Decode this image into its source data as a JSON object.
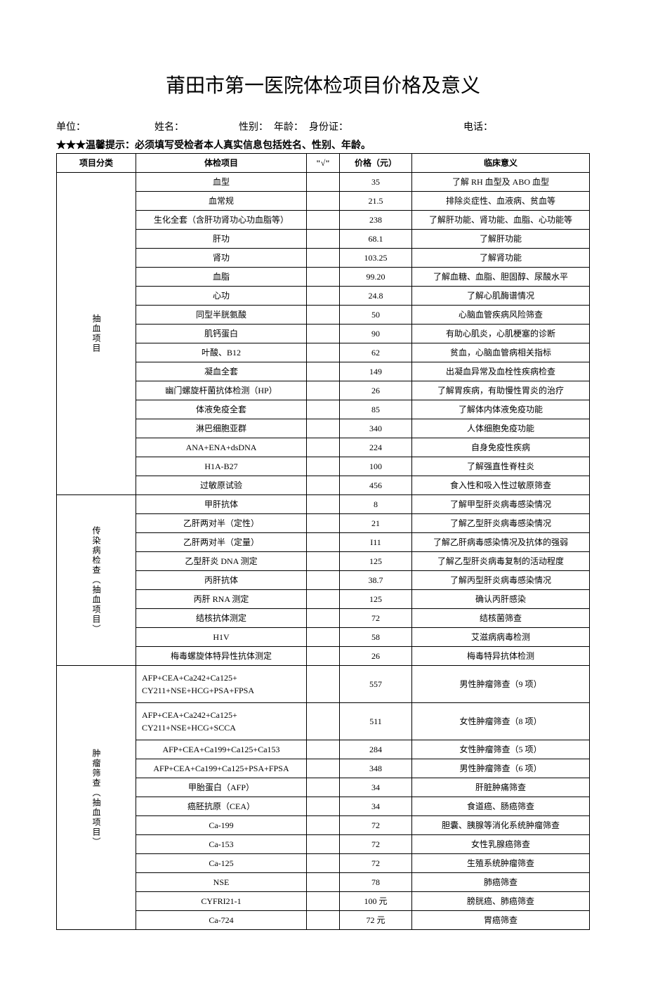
{
  "title": "莆田市第一医院体检项目价格及意义",
  "info": {
    "unit_label": "单位：",
    "name_label": "姓名：",
    "gender_label": "性别：",
    "age_label": "年龄：",
    "id_label": "身份证：",
    "phone_label": "电话："
  },
  "tip": "★★★温馨提示：必须填写受检者本人真实信息包括姓名、性别、年龄。",
  "header": {
    "category": "项目分类",
    "item": "体检项目",
    "check": "\"√\"",
    "price": "价格（元）",
    "meaning": "临床意义"
  },
  "sections": [
    {
      "category": "抽血项目",
      "rows": [
        {
          "item": "血型",
          "check": "",
          "price": "35",
          "desc": "了解 RH 血型及 ABO 血型"
        },
        {
          "item": "血常规",
          "check": "",
          "price": "21.5",
          "desc": "排除炎症性、血液病、贫血等"
        },
        {
          "item": "生化全套（含肝功肾功心功血脂等）",
          "check": "",
          "price": "238",
          "desc": "了解肝功能、肾功能、血脂、心功能等"
        },
        {
          "item": "肝功",
          "check": "",
          "price": "68.1",
          "desc": "了解肝功能"
        },
        {
          "item": "肾功",
          "check": "",
          "price": "103.25",
          "desc": "了解肾功能"
        },
        {
          "item": "血脂",
          "check": "",
          "price": "99.20",
          "desc": "了解血糖、血脂、胆固醇、尿酸水平"
        },
        {
          "item": "心功",
          "check": "",
          "price": "24.8",
          "desc": "了解心肌酶谱情况"
        },
        {
          "item": "同型半胱氨酸",
          "check": "",
          "price": "50",
          "desc": "心脑血管疾病风险筛查"
        },
        {
          "item": "肌钙蛋白",
          "check": "",
          "price": "90",
          "desc": "有助心肌炎，心肌梗塞的诊断"
        },
        {
          "item": "叶酸、B12",
          "check": "",
          "price": "62",
          "desc": "贫血，心脑血管病相关指标"
        },
        {
          "item": "凝血全套",
          "check": "",
          "price": "149",
          "desc": "出凝血异常及血栓性疾病检查"
        },
        {
          "item": "幽门螺旋杆菌抗体检测（HP）",
          "check": "",
          "price": "26",
          "desc": "了解胃疾病，有助慢性胃炎的治疗"
        },
        {
          "item": "体液免疫全套",
          "check": "",
          "price": "85",
          "desc": "了解体内体液免疫功能"
        },
        {
          "item": "淋巴细胞亚群",
          "check": "",
          "price": "340",
          "desc": "人体细胞免疫功能"
        },
        {
          "item": "ANA+ENA+dsDNA",
          "check": "",
          "price": "224",
          "desc": "自身免疫性疾病"
        },
        {
          "item": "H1A-B27",
          "check": "",
          "price": "100",
          "desc": "了解强直性脊柱炎"
        },
        {
          "item": "过敏原试验",
          "check": "",
          "price": "456",
          "desc": "食入性和吸入性过敏原筛查"
        }
      ]
    },
    {
      "category": "传染病检查（抽血项目）",
      "rows": [
        {
          "item": "甲肝抗体",
          "check": "",
          "price": "8",
          "desc": "了解甲型肝炎病毒感染情况"
        },
        {
          "item": "乙肝两对半（定性）",
          "check": "",
          "price": "21",
          "desc": "了解乙型肝炎病毒感染情况"
        },
        {
          "item": "乙肝两对半（定量）",
          "check": "",
          "price": "I11",
          "desc": "了解乙肝病毒感染情况及抗体的强弱"
        },
        {
          "item": "乙型肝炎 DNA 测定",
          "check": "",
          "price": "125",
          "desc": "了解乙型肝炎病毒复制的活动程度"
        },
        {
          "item": "丙肝抗体",
          "check": "",
          "price": "38.7",
          "desc": "了解丙型肝炎病毒感染情况"
        },
        {
          "item": "丙肝 RNA 测定",
          "check": "",
          "price": "125",
          "desc": "确认丙肝感染"
        },
        {
          "item": "结核抗体测定",
          "check": "",
          "price": "72",
          "desc": "结核菌筛查"
        },
        {
          "item": "H1V",
          "check": "",
          "price": "58",
          "desc": "艾滋病病毒检测"
        },
        {
          "item": "梅毒螺旋体特异性抗体测定",
          "check": "",
          "price": "26",
          "desc": "梅毒特异抗体检测"
        }
      ]
    },
    {
      "category": "肿瘤筛查（抽血项目）",
      "rows": [
        {
          "item": "AFP+CEA+Ca242+Ca125+ CY211+NSE+HCG+PSA+FPSA",
          "check": "",
          "price": "557",
          "desc": "男性肿瘤筛查（9 项）",
          "left": true,
          "tall": true
        },
        {
          "item": "AFP+CEA+Ca242+Ca125+ CY211+NSE+HCG+SCCA",
          "check": "",
          "price": "511",
          "desc": "女性肿瘤筛查（8 项）",
          "left": true,
          "tall": true
        },
        {
          "item": "AFP+CEA+Ca199+Ca125+Ca153",
          "check": "",
          "price": "284",
          "desc": "女性肿瘤筛查（5 项）"
        },
        {
          "item": "AFP+CEA+Ca199+Ca125+PSA+FPSA",
          "check": "",
          "price": "348",
          "desc": "男性肿瘤筛查（6 项）"
        },
        {
          "item": "甲胎蛋白（AFP）",
          "check": "",
          "price": "34",
          "desc": "肝脏肿痛筛查"
        },
        {
          "item": "癌胚抗原（CEA）",
          "check": "",
          "price": "34",
          "desc": "食道癌、肠癌筛查"
        },
        {
          "item": "Ca-199",
          "check": "",
          "price": "72",
          "desc": "胆囊、胰腺等消化系统肿瘤筛查"
        },
        {
          "item": "Ca-153",
          "check": "",
          "price": "72",
          "desc": "女性乳腺癌筛查"
        },
        {
          "item": "Ca-125",
          "check": "",
          "price": "72",
          "desc": "生殖系统肿瘤筛查"
        },
        {
          "item": "NSE",
          "check": "",
          "price": "78",
          "desc": "肺癌筛查"
        },
        {
          "item": "CYFRI21-1",
          "check": "",
          "price": "100 元",
          "desc": "膀胱癌、肺癌筛查"
        },
        {
          "item": "Ca-724",
          "check": "",
          "price": "72 元",
          "desc": "胃癌筛查"
        }
      ]
    }
  ]
}
